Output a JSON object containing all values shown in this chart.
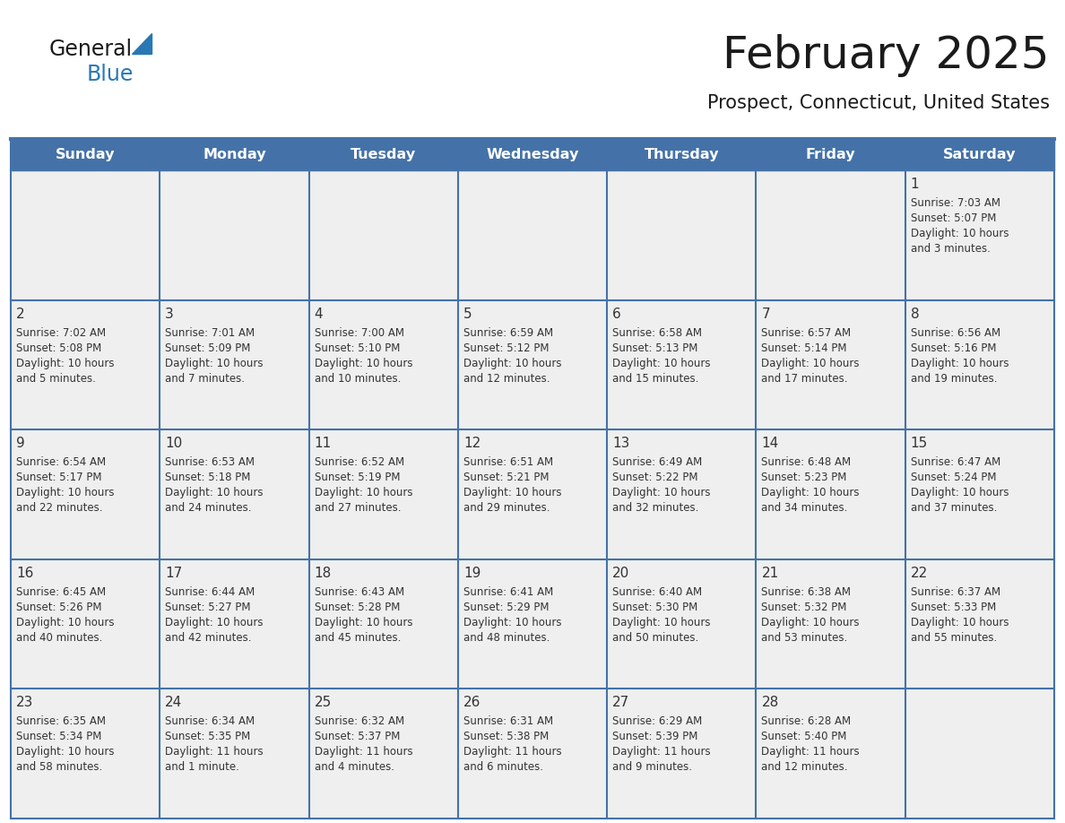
{
  "title": "February 2025",
  "subtitle": "Prospect, Connecticut, United States",
  "header_bg_color": "#4472a8",
  "header_text_color": "#ffffff",
  "day_names": [
    "Sunday",
    "Monday",
    "Tuesday",
    "Wednesday",
    "Thursday",
    "Friday",
    "Saturday"
  ],
  "cell_bg_color": "#efefef",
  "cell_border_color": "#4472a8",
  "day_num_color": "#333333",
  "info_text_color": "#333333",
  "logo_general_color": "#1a1a1a",
  "logo_blue_color": "#2878b4",
  "title_fontsize": 36,
  "subtitle_fontsize": 16,
  "header_fontsize": 12,
  "day_num_fontsize": 11,
  "info_fontsize": 8.5,
  "weeks": [
    [
      {
        "day": null,
        "info": ""
      },
      {
        "day": null,
        "info": ""
      },
      {
        "day": null,
        "info": ""
      },
      {
        "day": null,
        "info": ""
      },
      {
        "day": null,
        "info": ""
      },
      {
        "day": null,
        "info": ""
      },
      {
        "day": 1,
        "info": "Sunrise: 7:03 AM\nSunset: 5:07 PM\nDaylight: 10 hours\nand 3 minutes."
      }
    ],
    [
      {
        "day": 2,
        "info": "Sunrise: 7:02 AM\nSunset: 5:08 PM\nDaylight: 10 hours\nand 5 minutes."
      },
      {
        "day": 3,
        "info": "Sunrise: 7:01 AM\nSunset: 5:09 PM\nDaylight: 10 hours\nand 7 minutes."
      },
      {
        "day": 4,
        "info": "Sunrise: 7:00 AM\nSunset: 5:10 PM\nDaylight: 10 hours\nand 10 minutes."
      },
      {
        "day": 5,
        "info": "Sunrise: 6:59 AM\nSunset: 5:12 PM\nDaylight: 10 hours\nand 12 minutes."
      },
      {
        "day": 6,
        "info": "Sunrise: 6:58 AM\nSunset: 5:13 PM\nDaylight: 10 hours\nand 15 minutes."
      },
      {
        "day": 7,
        "info": "Sunrise: 6:57 AM\nSunset: 5:14 PM\nDaylight: 10 hours\nand 17 minutes."
      },
      {
        "day": 8,
        "info": "Sunrise: 6:56 AM\nSunset: 5:16 PM\nDaylight: 10 hours\nand 19 minutes."
      }
    ],
    [
      {
        "day": 9,
        "info": "Sunrise: 6:54 AM\nSunset: 5:17 PM\nDaylight: 10 hours\nand 22 minutes."
      },
      {
        "day": 10,
        "info": "Sunrise: 6:53 AM\nSunset: 5:18 PM\nDaylight: 10 hours\nand 24 minutes."
      },
      {
        "day": 11,
        "info": "Sunrise: 6:52 AM\nSunset: 5:19 PM\nDaylight: 10 hours\nand 27 minutes."
      },
      {
        "day": 12,
        "info": "Sunrise: 6:51 AM\nSunset: 5:21 PM\nDaylight: 10 hours\nand 29 minutes."
      },
      {
        "day": 13,
        "info": "Sunrise: 6:49 AM\nSunset: 5:22 PM\nDaylight: 10 hours\nand 32 minutes."
      },
      {
        "day": 14,
        "info": "Sunrise: 6:48 AM\nSunset: 5:23 PM\nDaylight: 10 hours\nand 34 minutes."
      },
      {
        "day": 15,
        "info": "Sunrise: 6:47 AM\nSunset: 5:24 PM\nDaylight: 10 hours\nand 37 minutes."
      }
    ],
    [
      {
        "day": 16,
        "info": "Sunrise: 6:45 AM\nSunset: 5:26 PM\nDaylight: 10 hours\nand 40 minutes."
      },
      {
        "day": 17,
        "info": "Sunrise: 6:44 AM\nSunset: 5:27 PM\nDaylight: 10 hours\nand 42 minutes."
      },
      {
        "day": 18,
        "info": "Sunrise: 6:43 AM\nSunset: 5:28 PM\nDaylight: 10 hours\nand 45 minutes."
      },
      {
        "day": 19,
        "info": "Sunrise: 6:41 AM\nSunset: 5:29 PM\nDaylight: 10 hours\nand 48 minutes."
      },
      {
        "day": 20,
        "info": "Sunrise: 6:40 AM\nSunset: 5:30 PM\nDaylight: 10 hours\nand 50 minutes."
      },
      {
        "day": 21,
        "info": "Sunrise: 6:38 AM\nSunset: 5:32 PM\nDaylight: 10 hours\nand 53 minutes."
      },
      {
        "day": 22,
        "info": "Sunrise: 6:37 AM\nSunset: 5:33 PM\nDaylight: 10 hours\nand 55 minutes."
      }
    ],
    [
      {
        "day": 23,
        "info": "Sunrise: 6:35 AM\nSunset: 5:34 PM\nDaylight: 10 hours\nand 58 minutes."
      },
      {
        "day": 24,
        "info": "Sunrise: 6:34 AM\nSunset: 5:35 PM\nDaylight: 11 hours\nand 1 minute."
      },
      {
        "day": 25,
        "info": "Sunrise: 6:32 AM\nSunset: 5:37 PM\nDaylight: 11 hours\nand 4 minutes."
      },
      {
        "day": 26,
        "info": "Sunrise: 6:31 AM\nSunset: 5:38 PM\nDaylight: 11 hours\nand 6 minutes."
      },
      {
        "day": 27,
        "info": "Sunrise: 6:29 AM\nSunset: 5:39 PM\nDaylight: 11 hours\nand 9 minutes."
      },
      {
        "day": 28,
        "info": "Sunrise: 6:28 AM\nSunset: 5:40 PM\nDaylight: 11 hours\nand 12 minutes."
      },
      {
        "day": null,
        "info": ""
      }
    ]
  ]
}
